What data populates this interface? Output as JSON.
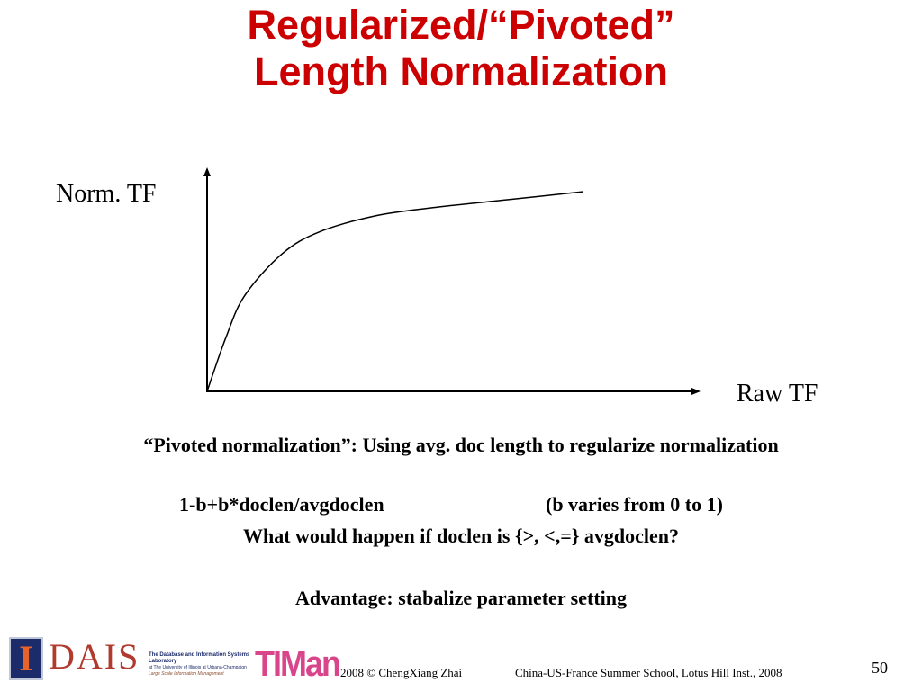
{
  "title": {
    "line1": "Regularized/“Pivoted”",
    "line2": "Length Normalization"
  },
  "chart_data": {
    "type": "line",
    "ylabel": "Norm. TF",
    "xlabel": "Raw TF",
    "grid": false,
    "x_ticks": [],
    "y_ticks": [],
    "series": [
      {
        "x": [
          0.0,
          0.05,
          0.1,
          0.2,
          0.3,
          0.45,
          0.6,
          0.8,
          1.0
        ],
        "y": [
          0.0,
          0.27,
          0.48,
          0.69,
          0.8,
          0.88,
          0.92,
          0.96,
          1.0
        ]
      }
    ]
  },
  "body": {
    "pivoted": "“Pivoted normalization”: Using avg. doc length to regularize normalization",
    "formula": "1-b+b*doclen/avgdoclen",
    "range": "(b varies from 0 to 1)",
    "question": "What would happen if doclen is {>, <,=} avgdoclen?",
    "advantage": "Advantage: stabalize parameter setting"
  },
  "footer": {
    "logo_i": "I",
    "logo_dais": "DAIS",
    "lab_title": "The Database and Information Systems Laboratory",
    "lab_location": "at The University of Illinois at Urbana-Champaign",
    "lab_sub": "Large Scale Information Management",
    "logo_timan": "TIMan",
    "copyright": "2008 © ChengXiang Zhai",
    "event": "China-US-France Summer School, Lotus Hill Inst., 2008",
    "page_number": "50"
  }
}
